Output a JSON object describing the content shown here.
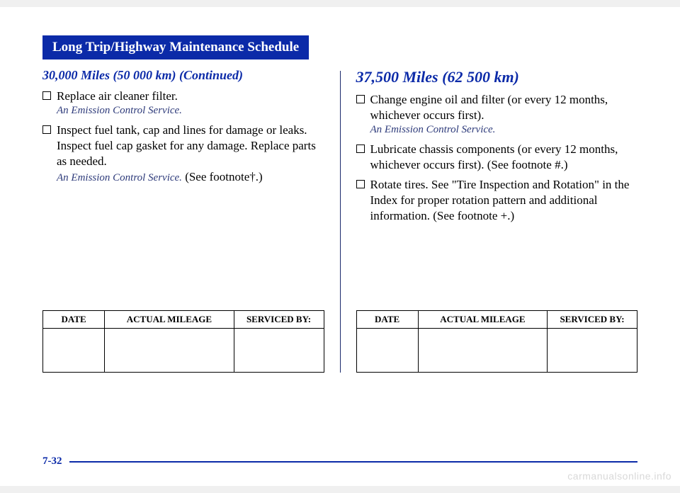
{
  "colors": {
    "title_bg": "#0b2aa8",
    "title_text": "#ffffff",
    "heading_blue": "#0b2aa8",
    "note_text": "#2d3a7a",
    "footer_line": "#0b2aa8",
    "watermark": "#d9d9d9"
  },
  "title": "Long Trip/Highway Maintenance Schedule",
  "left": {
    "heading": "30,000 Miles (50 000 km) (Continued)",
    "items": [
      {
        "text": "Replace air cleaner filter.",
        "note": "An Emission Control Service."
      },
      {
        "text": "Inspect fuel tank, cap and lines for damage or leaks. Inspect fuel cap gasket for any damage. Replace parts as needed.",
        "note": "An Emission Control Service.",
        "trailing": "(See footnote†.)"
      }
    ]
  },
  "right": {
    "heading": "37,500 Miles (62 500 km)",
    "items": [
      {
        "text": "Change engine oil and filter (or every 12 months, whichever occurs first).",
        "note": "An Emission Control Service."
      },
      {
        "text": "Lubricate chassis components (or every 12 months, whichever occurs first). (See footnote #.)"
      },
      {
        "text": "Rotate tires. See \"Tire Inspection and Rotation\" in the Index for proper rotation pattern and additional information. (See footnote +.)"
      }
    ]
  },
  "table_headers": {
    "date": "DATE",
    "mileage": "ACTUAL MILEAGE",
    "serviced": "SERVICED BY:"
  },
  "page_number": "7-32",
  "watermark": "carmanualsonline.info"
}
